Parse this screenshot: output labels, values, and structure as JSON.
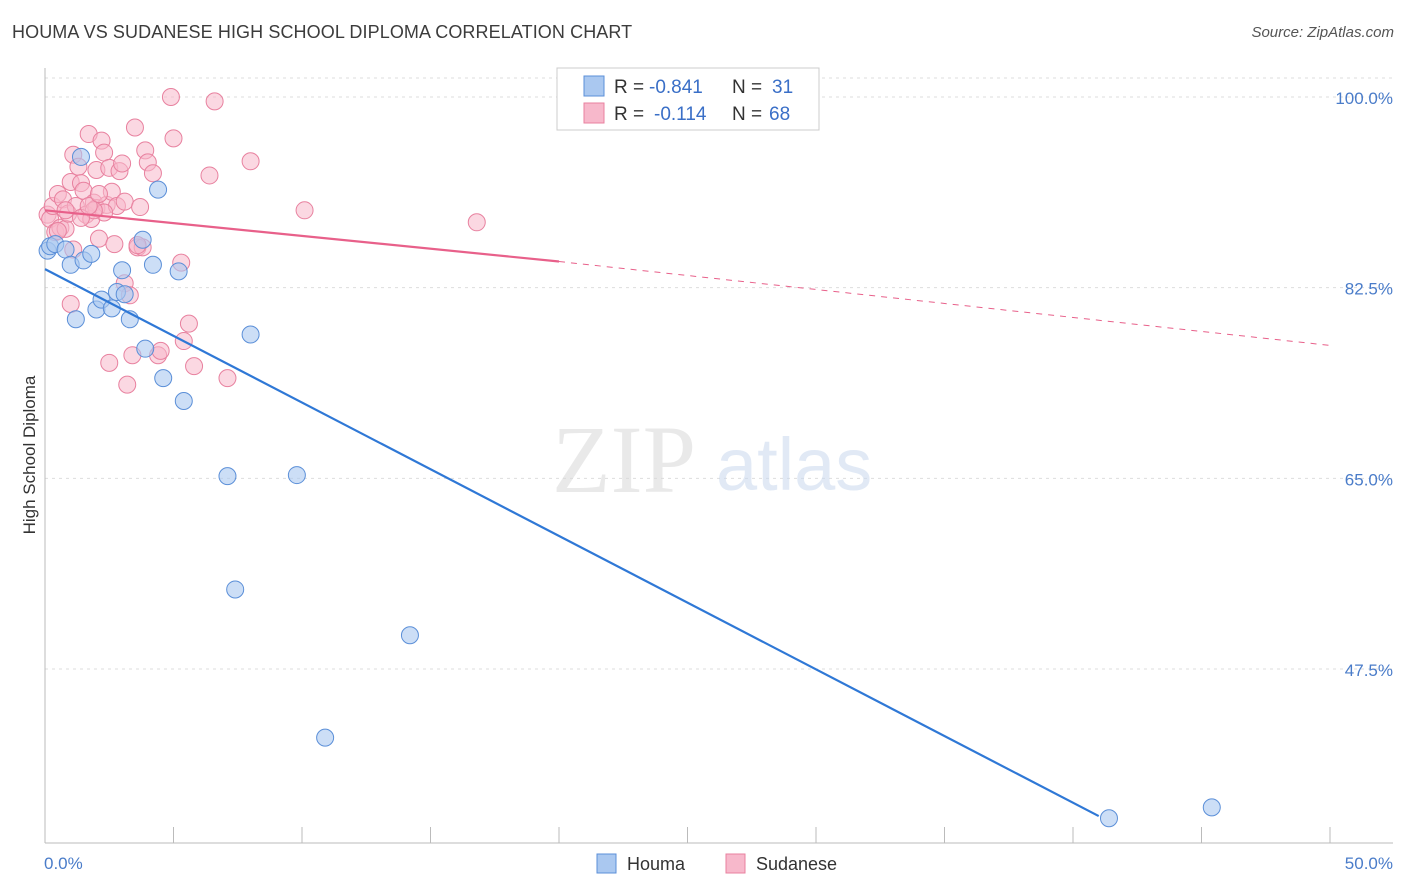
{
  "title": "HOUMA VS SUDANESE HIGH SCHOOL DIPLOMA CORRELATION CHART",
  "source": "Source: ZipAtlas.com",
  "watermark": {
    "zip": "ZIP",
    "atlas": "atlas"
  },
  "colors": {
    "houma_fill": "#aac8f0",
    "houma_stroke": "#5b8fd8",
    "houma_line": "#2f78d6",
    "sudanese_fill": "#f7b8cb",
    "sudanese_stroke": "#e8819f",
    "sudanese_line": "#e8608a",
    "tick_text": "#4a7cc9",
    "grid": "#dddddd"
  },
  "legend": {
    "rows": [
      {
        "series": "Houma",
        "r_label": "R =",
        "r_value": "-0.841",
        "n_label": "N =",
        "n_value": "31"
      },
      {
        "series": "Sudanese",
        "r_label": "R =",
        "r_value": "-0.114",
        "n_label": "N =",
        "n_value": "68"
      }
    ]
  },
  "chart_data": {
    "type": "scatter",
    "title": "HOUMA VS SUDANESE HIGH SCHOOL DIPLOMA CORRELATION CHART",
    "xlabel": "",
    "ylabel": "High School Diploma",
    "xlim": [
      0,
      50
    ],
    "ylim": [
      34,
      102
    ],
    "x_tick_labels": [
      "0.0%",
      "50.0%"
    ],
    "y_ticks": [
      100.0,
      82.5,
      65.0,
      47.5
    ],
    "y_tick_labels": [
      "100.0%",
      "82.5%",
      "65.0%",
      "47.5%"
    ],
    "grid": true,
    "legend_labels": [
      "Houma",
      "Sudanese"
    ],
    "series": [
      {
        "name": "Houma",
        "points": [
          [
            0.1,
            85.9
          ],
          [
            0.2,
            86.3
          ],
          [
            0.4,
            86.5
          ],
          [
            0.8,
            86.0
          ],
          [
            1.0,
            84.6
          ],
          [
            1.2,
            79.6
          ],
          [
            1.4,
            94.5
          ],
          [
            1.5,
            85.0
          ],
          [
            1.8,
            85.6
          ],
          [
            2.0,
            80.5
          ],
          [
            2.2,
            81.4
          ],
          [
            2.6,
            80.6
          ],
          [
            2.8,
            82.1
          ],
          [
            3.0,
            84.1
          ],
          [
            3.1,
            81.9
          ],
          [
            3.3,
            79.6
          ],
          [
            3.8,
            86.9
          ],
          [
            3.9,
            76.9
          ],
          [
            4.2,
            84.6
          ],
          [
            4.4,
            91.5
          ],
          [
            4.6,
            74.2
          ],
          [
            5.2,
            84.0
          ],
          [
            5.4,
            72.1
          ],
          [
            7.1,
            65.2
          ],
          [
            7.4,
            54.8
          ],
          [
            8.0,
            78.2
          ],
          [
            9.8,
            65.3
          ],
          [
            10.9,
            41.2
          ],
          [
            14.2,
            50.6
          ],
          [
            41.4,
            33.8
          ],
          [
            45.4,
            34.8
          ]
        ],
        "trend": {
          "x": [
            0.0,
            41.0
          ],
          "y": [
            84.2,
            34.0
          ]
        }
      },
      {
        "name": "Sudanese",
        "points": [
          [
            0.1,
            89.2
          ],
          [
            0.2,
            88.8
          ],
          [
            0.3,
            90.0
          ],
          [
            0.4,
            87.6
          ],
          [
            0.5,
            91.1
          ],
          [
            0.6,
            88.0
          ],
          [
            0.7,
            90.6
          ],
          [
            0.8,
            87.9
          ],
          [
            0.9,
            89.3
          ],
          [
            1.0,
            92.2
          ],
          [
            1.0,
            81.0
          ],
          [
            1.1,
            94.7
          ],
          [
            1.2,
            90.0
          ],
          [
            1.3,
            93.6
          ],
          [
            1.4,
            92.1
          ],
          [
            1.5,
            91.4
          ],
          [
            1.6,
            89.2
          ],
          [
            1.7,
            96.6
          ],
          [
            1.8,
            88.8
          ],
          [
            1.9,
            90.3
          ],
          [
            2.0,
            89.8
          ],
          [
            2.0,
            93.3
          ],
          [
            2.1,
            87.0
          ],
          [
            2.2,
            96.0
          ],
          [
            2.3,
            94.9
          ],
          [
            2.4,
            90.1
          ],
          [
            2.5,
            93.5
          ],
          [
            2.5,
            75.6
          ],
          [
            2.6,
            91.3
          ],
          [
            2.7,
            86.5
          ],
          [
            2.8,
            90.0
          ],
          [
            2.9,
            93.2
          ],
          [
            3.0,
            93.9
          ],
          [
            3.1,
            90.4
          ],
          [
            3.1,
            82.9
          ],
          [
            3.2,
            73.6
          ],
          [
            3.3,
            81.8
          ],
          [
            3.4,
            76.3
          ],
          [
            3.5,
            97.2
          ],
          [
            3.6,
            86.2
          ],
          [
            3.7,
            89.9
          ],
          [
            3.8,
            86.2
          ],
          [
            3.9,
            95.1
          ],
          [
            4.0,
            94.0
          ],
          [
            4.2,
            93.0
          ],
          [
            4.4,
            76.3
          ],
          [
            4.5,
            76.7
          ],
          [
            4.9,
            100.0
          ],
          [
            5.0,
            96.2
          ],
          [
            5.3,
            84.8
          ],
          [
            5.4,
            77.6
          ],
          [
            5.6,
            79.2
          ],
          [
            5.8,
            75.3
          ],
          [
            6.4,
            92.8
          ],
          [
            6.6,
            99.6
          ],
          [
            7.1,
            74.2
          ],
          [
            8.0,
            94.1
          ],
          [
            10.1,
            89.6
          ],
          [
            16.8,
            88.5
          ],
          [
            2.3,
            89.4
          ],
          [
            1.9,
            89.6
          ],
          [
            0.8,
            89.6
          ],
          [
            1.1,
            86.0
          ],
          [
            0.5,
            87.7
          ],
          [
            1.4,
            88.9
          ],
          [
            3.6,
            86.4
          ],
          [
            1.7,
            90.0
          ],
          [
            2.1,
            91.1
          ]
        ],
        "trend": {
          "x": [
            0.0,
            20.0
          ],
          "y": [
            89.6,
            84.9
          ]
        },
        "trend_dashed": {
          "x": [
            20.0,
            50.0
          ],
          "y": [
            84.9,
            77.2
          ]
        }
      }
    ]
  }
}
